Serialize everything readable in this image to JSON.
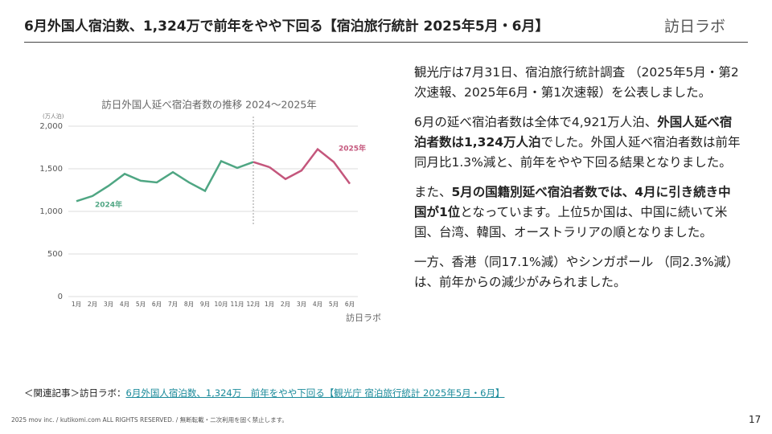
{
  "header": {
    "title": "6月外国人宿泊数、1,324万で前年をやや下回る【宿泊旅行統計 2025年5月・6月】",
    "logo": "訪日ラボ"
  },
  "chart_data": {
    "type": "line",
    "title": "訪日外国人延べ宿泊者数の推移 2024〜2025年",
    "y_label": "(万人泊)",
    "categories": [
      "1月",
      "2月",
      "3月",
      "4月",
      "5月",
      "6月",
      "7月",
      "8月",
      "9月",
      "10月",
      "11月",
      "12月",
      "1月",
      "2月",
      "3月",
      "4月",
      "5月",
      "6月"
    ],
    "series": [
      {
        "name": "2024年",
        "color": "#4fa683",
        "values": [
          1120,
          1180,
          1300,
          1440,
          1360,
          1340,
          1460,
          1340,
          1240,
          1590,
          1510,
          1580,
          null,
          null,
          null,
          null,
          null,
          null
        ]
      },
      {
        "name": "2025年",
        "color": "#c4567c",
        "values": [
          null,
          null,
          null,
          null,
          null,
          null,
          null,
          null,
          null,
          null,
          null,
          null,
          1520,
          1380,
          1480,
          1730,
          1580,
          1324
        ]
      }
    ],
    "ylim": [
      0,
      2000
    ],
    "yticks": [
      0,
      500,
      {
        "value": 1000,
        "label": "1,000"
      },
      {
        "value": 1500,
        "label": "1,500"
      },
      {
        "value": 2000,
        "label": "2,000"
      }
    ],
    "grid": true,
    "logo": "訪日ラボ"
  },
  "body": {
    "paragraphs": [
      [
        "観光庁は7月31日、宿泊旅行統計調査 （2025年5月・第2次速報、2025年6月・第1次速報）を公表しました。"
      ],
      [
        "6月の延べ宿泊者数は全体で4,921万人泊、",
        "外国人延べ宿泊者数は1,324万人泊",
        "でした。外国人延べ宿泊者数は前年同月比1.3%減と、前年をやや下回る結果となりました。"
      ],
      [
        "また、",
        "5月の国籍別延べ宿泊者数では、4月に引き続き中国が1位",
        "となっています。上位5か国は、中国に続いて米国、台湾、韓国、オーストラリアの順となりました。"
      ],
      [
        "一方、香港（同17.1%減）やシンガポール （同2.3%減）は、前年からの減少がみられました。"
      ]
    ]
  },
  "footer": {
    "related_prefix": "＜関連記事＞訪日ラボ：",
    "related_link": "6月外国人宿泊数、1,324万　前年をやや下回る【観光庁 宿泊旅行統計 2025年5月・6月】",
    "copyright": "2025 mov inc. / kutikomi.com ALL RIGHTS RESERVED. / 無断転載・二次利用を固く禁止します。",
    "page": "17"
  }
}
